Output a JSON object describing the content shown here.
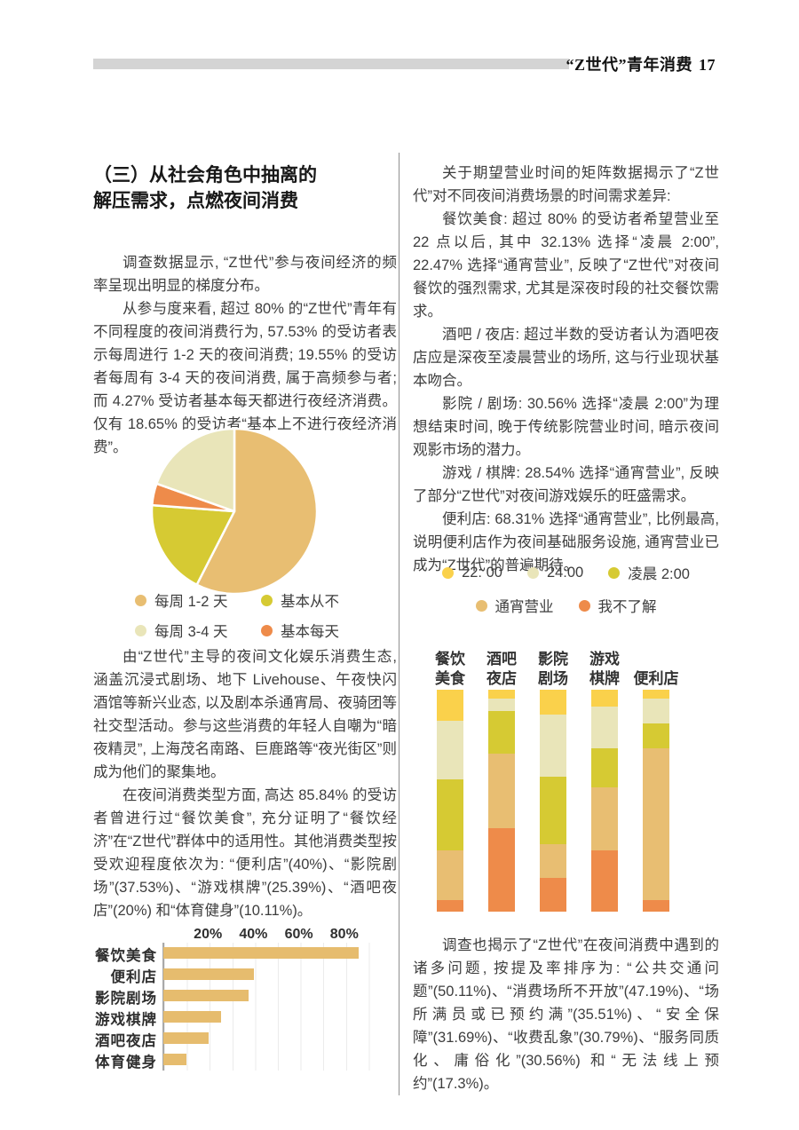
{
  "header": {
    "title": "“Z世代”青年消费",
    "page_number": "17"
  },
  "left_column": {
    "section_title": {
      "line1": "（三）从社会角色中抽离的",
      "line2": "解压需求，点燃夜间消费"
    },
    "paragraphs": [
      "调查数据显示, “Z世代”参与夜间经济的频率呈现出明显的梯度分布。",
      "从参与度来看, 超过 80% 的“Z世代”青年有不同程度的夜间消费行为, 57.53% 的受访者表示每周进行 1-2 天的夜间消费; 19.55% 的受访者每周有 3-4 天的夜间消费, 属于高频参与者; 而 4.27% 受访者基本每天都进行夜经济消费。仅有 18.65% 的受访者“基本上不进行夜经济消费”。",
      "由“Z世代”主导的夜间文化娱乐消费生态, 涵盖沉浸式剧场、地下 Livehouse、午夜快闪酒馆等新兴业态, 以及剧本杀通宵局、夜骑团等社交型活动。参与这些消费的年轻人自嘲为“暗夜精灵”, 上海茂名南路、巨鹿路等“夜光街区”则成为他们的聚集地。",
      "在夜间消费类型方面, 高达 85.84% 的受访者曾进行过“餐饮美食”, 充分证明了“餐饮经济”在“Z世代”群体中的适用性。其他消费类型按受欢迎程度依次为: “便利店”(40%)、“影院剧场”(37.53%)、“游戏棋牌”(25.39%)、“酒吧夜店”(20%) 和“体育健身”(10.11%)。"
    ]
  },
  "right_column": {
    "paragraphs": [
      "关于期望营业时间的矩阵数据揭示了“Z世代”对不同夜间消费场景的时间需求差异:",
      "餐饮美食: 超过 80% 的受访者希望营业至 22 点以后, 其中 32.13% 选择“凌晨 2:00”, 22.47% 选择“通宵营业”, 反映了“Z世代”对夜间餐饮的强烈需求, 尤其是深夜时段的社交餐饮需求。",
      "酒吧 / 夜店: 超过半数的受访者认为酒吧夜店应是深夜至凌晨营业的场所, 这与行业现状基本吻合。",
      "影院 / 剧场: 30.56% 选择“凌晨 2:00”为理想结束时间, 晚于传统影院营业时间, 暗示夜间观影市场的潜力。",
      "游戏 / 棋牌: 28.54% 选择“通宵营业”, 反映了部分“Z世代”对夜间游戏娱乐的旺盛需求。",
      "便利店: 68.31% 选择“通宵营业”, 比例最高, 说明便利店作为夜间基础服务设施, 通宵营业已成为“Z世代”的普遍期待。"
    ],
    "closing_paragraph": "调查也揭示了“Z世代”在夜间消费中遇到的诸多问题, 按提及率排序为: “公共交通问题”(50.11%)、“消费场所不开放”(47.19%)、“场所满员或已预约满”(35.51%)、“安全保障”(31.69%)、“收费乱象”(30.79%)、“服务同质化、庸俗化”(30.56%) 和“无法线上预约”(17.3%)。"
  },
  "palette": {
    "tan": "#E8BE72",
    "cream": "#E9E5B9",
    "yellow_green": "#D6CA33",
    "bright_yellow": "#FAD14B",
    "orange": "#EE8B4A",
    "header_bar_gray": "#D4D4D4"
  },
  "chart_data": [
    {
      "type": "pie",
      "start_angle_deg": -90,
      "direction": "clockwise",
      "slices": [
        {
          "label": "每周 1-2 天",
          "value": 57.53,
          "color": "#E8BE72"
        },
        {
          "label": "基本从不",
          "value": 18.65,
          "color": "#D6CA33"
        },
        {
          "label": "基本每天",
          "value": 4.27,
          "color": "#EE8B4A"
        },
        {
          "label": "每周 3-4 天",
          "value": 19.55,
          "color": "#E9E5B9"
        }
      ],
      "legend": [
        {
          "label": "每周 1-2 天",
          "color": "#E8BE72"
        },
        {
          "label": "基本从不",
          "color": "#D6CA33"
        },
        {
          "label": "每周 3-4 天",
          "color": "#E9E5B9"
        },
        {
          "label": "基本每天",
          "color": "#EE8B4A"
        }
      ]
    },
    {
      "type": "bar",
      "orientation": "horizontal",
      "categories": [
        "餐饮美食",
        "便利店",
        "影院剧场",
        "游戏棋牌",
        "酒吧夜店",
        "体育健身"
      ],
      "values": [
        85.84,
        40,
        37.53,
        25.39,
        20,
        10.11
      ],
      "ticks": [
        20,
        40,
        60,
        80
      ],
      "tick_labels": [
        "20%",
        "40%",
        "60%",
        "80%"
      ],
      "xlim": [
        0,
        100
      ],
      "grid_step": 10,
      "bar_color": "#E6BC6E"
    },
    {
      "type": "bar",
      "variant": "stacked",
      "orientation": "vertical",
      "categories": [
        "餐饮美食",
        "酒吧夜店",
        "影院剧场",
        "游戏棋牌",
        "便利店"
      ],
      "category_lines": [
        [
          "餐饮",
          "美食"
        ],
        [
          "酒吧",
          "夜店"
        ],
        [
          "影院",
          "剧场"
        ],
        [
          "游戏",
          "棋牌"
        ],
        [
          "便利店"
        ]
      ],
      "series": [
        {
          "name": "22: 00",
          "color": "#FAD14B",
          "values": [
            13.9,
            4.0,
            11.3,
            7.7,
            4.0
          ]
        },
        {
          "name": "24:00",
          "color": "#E9E5B9",
          "values": [
            26.5,
            5.6,
            27.7,
            18.5,
            11.3
          ]
        },
        {
          "name": "凌晨 2:00",
          "color": "#D6CA33",
          "values": [
            32.13,
            19.3,
            30.56,
            17.6,
            11.2
          ]
        },
        {
          "name": "通宵营业",
          "color": "#E8BE72",
          "values": [
            22.47,
            33.3,
            15.3,
            28.54,
            68.31
          ]
        },
        {
          "name": "我不了解",
          "color": "#EE8B4A",
          "values": [
            5.0,
            37.8,
            15.14,
            27.66,
            5.19
          ]
        }
      ],
      "ylim": [
        0,
        100
      ],
      "legend_rows": [
        [
          "22: 00",
          "24:00",
          "凌晨 2:00"
        ],
        [
          "通宵营业",
          "我不了解"
        ]
      ]
    }
  ]
}
